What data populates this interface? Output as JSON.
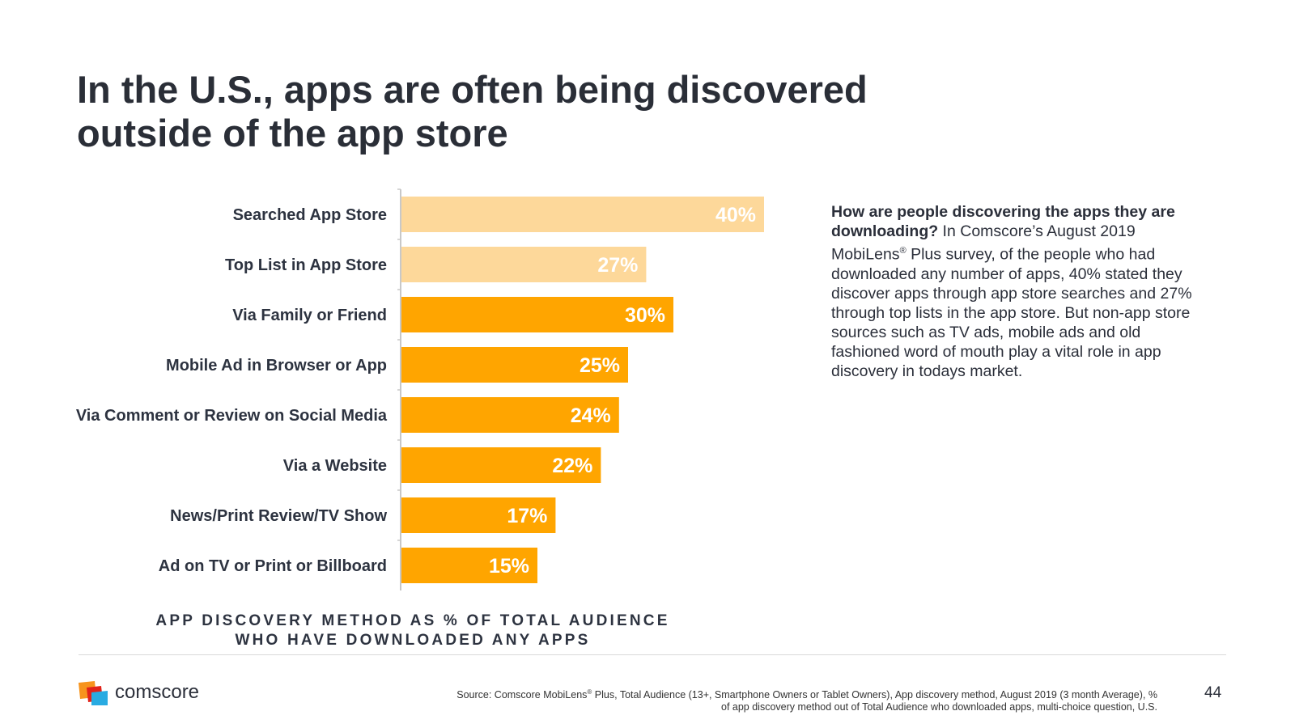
{
  "title": {
    "line1": "In the U.S., apps are often being discovered",
    "line2": "outside of the app store"
  },
  "chart_data": {
    "type": "bar",
    "orientation": "horizontal",
    "categories": [
      "Searched App Store",
      "Top List in App Store",
      "Via Family or Friend",
      "Mobile Ad in Browser or App",
      "Via Comment or Review on Social Media",
      "Via a Website",
      "News/Print Review/TV Show",
      "Ad on TV or Print or Billboard"
    ],
    "values": [
      40,
      27,
      30,
      25,
      24,
      22,
      17,
      15
    ],
    "value_labels": [
      "40%",
      "27%",
      "30%",
      "25%",
      "24%",
      "22%",
      "17%",
      "15%"
    ],
    "bar_colors": [
      "#fdd89a",
      "#fdd89a",
      "#ffa500",
      "#ffa500",
      "#ffa500",
      "#ffa500",
      "#ffa500",
      "#ffa500"
    ],
    "xlim": [
      0,
      40
    ],
    "grid": false,
    "caption_line1": "APP DISCOVERY METHOD AS % OF TOTAL AUDIENCE",
    "caption_line2": "WHO HAVE DOWNLOADED ANY APPS"
  },
  "sidebar": {
    "question": "How are people discovering the apps they are downloading?",
    "body_part1": " In Comscore’s August 2019 MobiLens",
    "reg_mark": "®",
    "body_part2": " Plus survey, of the people who had downloaded any number of apps, 40% stated they discover apps through app store searches and 27% through top lists in the app store. But non-app store sources such as  TV ads, mobile ads and old fashioned word of mouth play a vital role in app discovery in todays market."
  },
  "footer": {
    "brand": "comscore",
    "source_part1": "Source: Comscore MobiLens",
    "source_reg": "®",
    "source_part2": " Plus, Total Audience (13+, Smartphone Owners or Tablet Owners), App discovery method, August 2019 (3 month Average), %",
    "source_line2": "of app discovery method out of Total Audience who downloaded apps, multi-choice question, U.S.",
    "page_number": "44"
  },
  "colors": {
    "accent_light": "#fdd89a",
    "accent": "#ffa500",
    "logo_orange": "#f7941d",
    "logo_red": "#e2231a",
    "logo_blue": "#29abe2"
  }
}
